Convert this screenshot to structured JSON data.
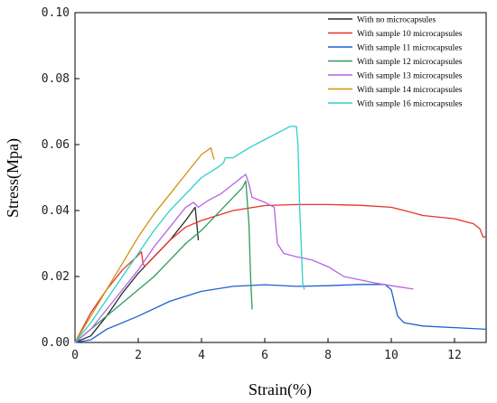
{
  "chart_data": {
    "type": "line",
    "xlabel": "Strain(%)",
    "ylabel": "Stress(Mpa)",
    "xlim": [
      0,
      13
    ],
    "ylim": [
      0,
      0.1
    ],
    "x_ticks": [
      0,
      2,
      4,
      6,
      8,
      10,
      12
    ],
    "y_ticks": [
      "0.00",
      "0.02",
      "0.04",
      "0.06",
      "0.08",
      "0.10"
    ],
    "legend_position": "top-right",
    "grid": false,
    "series": [
      {
        "name": "With no microcapsules",
        "color": "#2b2b2b",
        "points": [
          [
            0,
            0
          ],
          [
            0.5,
            0.002
          ],
          [
            1,
            0.008
          ],
          [
            1.5,
            0.015
          ],
          [
            2,
            0.021
          ],
          [
            2.5,
            0.026
          ],
          [
            3,
            0.031
          ],
          [
            3.5,
            0.037
          ],
          [
            3.8,
            0.041
          ],
          [
            3.85,
            0.036
          ],
          [
            3.9,
            0.031
          ]
        ]
      },
      {
        "name": "With sample 10 microcapsules",
        "color": "#e8312e",
        "points": [
          [
            0,
            0
          ],
          [
            0.5,
            0.009
          ],
          [
            1,
            0.016
          ],
          [
            1.5,
            0.022
          ],
          [
            1.95,
            0.026
          ],
          [
            2.1,
            0.0275
          ],
          [
            2.15,
            0.024
          ],
          [
            2.2,
            0.023
          ],
          [
            2.6,
            0.027
          ],
          [
            3,
            0.031
          ],
          [
            3.5,
            0.035
          ],
          [
            4,
            0.037
          ],
          [
            5,
            0.04
          ],
          [
            6,
            0.0415
          ],
          [
            7,
            0.0418
          ],
          [
            8,
            0.0418
          ],
          [
            9,
            0.0416
          ],
          [
            10,
            0.041
          ],
          [
            10.5,
            0.0398
          ],
          [
            11,
            0.0385
          ],
          [
            12,
            0.0375
          ],
          [
            12.6,
            0.036
          ],
          [
            12.8,
            0.0345
          ],
          [
            12.9,
            0.032
          ],
          [
            13,
            0.032
          ]
        ]
      },
      {
        "name": "With sample 11 microcapsules",
        "color": "#1e5fd1",
        "points": [
          [
            0,
            0
          ],
          [
            0.5,
            0.0008
          ],
          [
            1,
            0.004
          ],
          [
            2,
            0.008
          ],
          [
            3,
            0.0125
          ],
          [
            4,
            0.0155
          ],
          [
            5,
            0.017
          ],
          [
            6,
            0.0175
          ],
          [
            7,
            0.017
          ],
          [
            8,
            0.0172
          ],
          [
            9,
            0.0176
          ],
          [
            9.8,
            0.0176
          ],
          [
            10,
            0.016
          ],
          [
            10.2,
            0.008
          ],
          [
            10.4,
            0.006
          ],
          [
            11,
            0.005
          ],
          [
            12,
            0.0045
          ],
          [
            13,
            0.004
          ]
        ]
      },
      {
        "name": "With sample 12 microcapsules",
        "color": "#2a9d5c",
        "points": [
          [
            0,
            0
          ],
          [
            0.5,
            0.004
          ],
          [
            1,
            0.008
          ],
          [
            1.5,
            0.012
          ],
          [
            2,
            0.016
          ],
          [
            2.5,
            0.02
          ],
          [
            3,
            0.025
          ],
          [
            3.5,
            0.03
          ],
          [
            4,
            0.034
          ],
          [
            4.5,
            0.039
          ],
          [
            5,
            0.044
          ],
          [
            5.3,
            0.047
          ],
          [
            5.4,
            0.049
          ],
          [
            5.5,
            0.036
          ],
          [
            5.55,
            0.02
          ],
          [
            5.6,
            0.01
          ]
        ]
      },
      {
        "name": "With sample 13 microcapsules",
        "color": "#b463e3",
        "points": [
          [
            0,
            0
          ],
          [
            0.5,
            0.004
          ],
          [
            1,
            0.01
          ],
          [
            1.5,
            0.016
          ],
          [
            2,
            0.022
          ],
          [
            2.5,
            0.029
          ],
          [
            3,
            0.035
          ],
          [
            3.5,
            0.041
          ],
          [
            3.75,
            0.0425
          ],
          [
            3.9,
            0.041
          ],
          [
            4.2,
            0.043
          ],
          [
            4.6,
            0.045
          ],
          [
            5,
            0.048
          ],
          [
            5.4,
            0.051
          ],
          [
            5.5,
            0.048
          ],
          [
            5.6,
            0.044
          ],
          [
            6,
            0.0425
          ],
          [
            6.3,
            0.041
          ],
          [
            6.4,
            0.03
          ],
          [
            6.6,
            0.027
          ],
          [
            7,
            0.026
          ],
          [
            7.5,
            0.025
          ],
          [
            8,
            0.023
          ],
          [
            8.5,
            0.02
          ],
          [
            9,
            0.019
          ],
          [
            9.5,
            0.018
          ],
          [
            10,
            0.0172
          ],
          [
            10.7,
            0.0162
          ]
        ]
      },
      {
        "name": "With sample 14 microcapsules",
        "color": "#d4900f",
        "points": [
          [
            0,
            0
          ],
          [
            0.5,
            0.008
          ],
          [
            1,
            0.016
          ],
          [
            1.5,
            0.024
          ],
          [
            2,
            0.032
          ],
          [
            2.5,
            0.039
          ],
          [
            3,
            0.045
          ],
          [
            3.5,
            0.051
          ],
          [
            4,
            0.057
          ],
          [
            4.3,
            0.059
          ],
          [
            4.35,
            0.057
          ],
          [
            4.4,
            0.0555
          ]
        ]
      },
      {
        "name": "With sample 16 microcapsules",
        "color": "#2fcfc9",
        "points": [
          [
            0,
            0
          ],
          [
            0.5,
            0.006
          ],
          [
            1,
            0.013
          ],
          [
            1.5,
            0.02
          ],
          [
            2,
            0.027
          ],
          [
            2.5,
            0.034
          ],
          [
            3,
            0.04
          ],
          [
            3.5,
            0.045
          ],
          [
            4,
            0.05
          ],
          [
            4.5,
            0.053
          ],
          [
            4.7,
            0.0545
          ],
          [
            4.75,
            0.056
          ],
          [
            5,
            0.056
          ],
          [
            5.5,
            0.059
          ],
          [
            6,
            0.0615
          ],
          [
            6.5,
            0.064
          ],
          [
            6.8,
            0.0655
          ],
          [
            7,
            0.0655
          ],
          [
            7.05,
            0.06
          ],
          [
            7.1,
            0.042
          ],
          [
            7.2,
            0.018
          ],
          [
            7.25,
            0.016
          ]
        ]
      }
    ]
  }
}
